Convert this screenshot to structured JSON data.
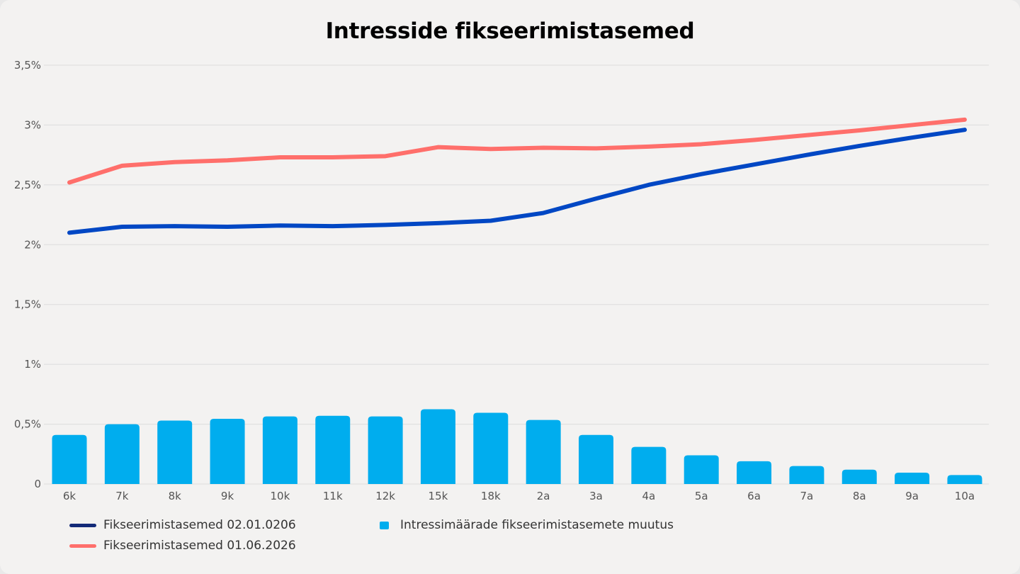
{
  "colors": {
    "series_a": "#0047c4",
    "series_b": "#ff6f6b",
    "bars": "#00adee",
    "legend_a": "#132a78",
    "legend_b": "#ff6f6b",
    "grid": "#dcdcdc"
  },
  "chart_data": {
    "type": "bar",
    "title": "Intresside fikseerimistasemed",
    "xlabel": "",
    "ylabel": "",
    "ylim": [
      0,
      3.5
    ],
    "y_ticks": [
      {
        "value": 0,
        "label": "0"
      },
      {
        "value": 0.5,
        "label": "0,5%"
      },
      {
        "value": 1,
        "label": "1%"
      },
      {
        "value": 1.5,
        "label": "1,5%"
      },
      {
        "value": 2,
        "label": "2%"
      },
      {
        "value": 2.5,
        "label": "2,5%"
      },
      {
        "value": 3,
        "label": "3%"
      },
      {
        "value": 3.5,
        "label": "3,5%"
      }
    ],
    "grid": true,
    "legend_position": "bottom-left",
    "categories": [
      "6k",
      "7k",
      "8k",
      "9k",
      "10k",
      "11k",
      "12k",
      "15k",
      "18k",
      "2a",
      "3a",
      "4a",
      "5a",
      "6a",
      "7a",
      "8a",
      "9a",
      "10a"
    ],
    "series": [
      {
        "name": "Fikseerimistasemed 02.01.0206",
        "type": "line",
        "values": [
          2.1,
          2.15,
          2.155,
          2.15,
          2.16,
          2.155,
          2.165,
          2.18,
          2.2,
          2.265,
          2.385,
          2.5,
          2.59,
          2.67,
          2.75,
          2.825,
          2.895,
          2.96
        ]
      },
      {
        "name": "Fikseerimistasemed 01.06.2026",
        "type": "line",
        "values": [
          2.52,
          2.66,
          2.69,
          2.705,
          2.73,
          2.73,
          2.74,
          2.815,
          2.8,
          2.81,
          2.805,
          2.82,
          2.84,
          2.875,
          2.915,
          2.955,
          3.0,
          3.045
        ]
      },
      {
        "name": "Intressimäärade fikseerimistasemete muutus",
        "type": "bar",
        "values": [
          0.41,
          0.5,
          0.53,
          0.545,
          0.565,
          0.57,
          0.565,
          0.625,
          0.595,
          0.535,
          0.41,
          0.31,
          0.24,
          0.19,
          0.15,
          0.12,
          0.095,
          0.075
        ]
      }
    ]
  }
}
